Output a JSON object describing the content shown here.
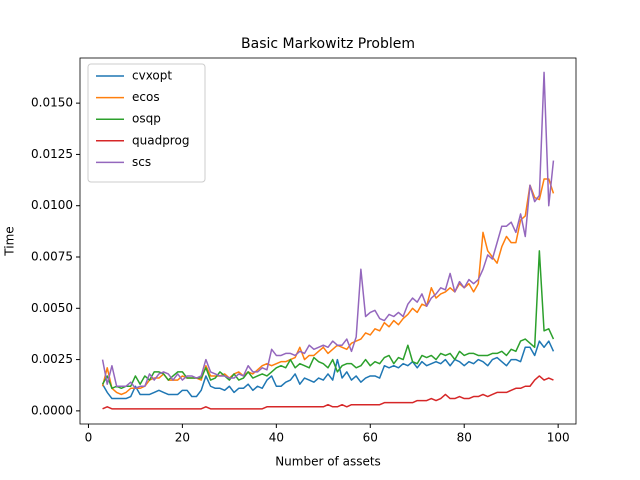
{
  "chart_data": {
    "type": "line",
    "title": "Basic Markowitz Problem",
    "xlabel": "Number of assets",
    "ylabel": "Time",
    "x": [
      3,
      4,
      5,
      6,
      7,
      8,
      9,
      10,
      11,
      12,
      13,
      14,
      15,
      16,
      17,
      18,
      19,
      20,
      21,
      22,
      23,
      24,
      25,
      26,
      27,
      28,
      29,
      30,
      31,
      32,
      33,
      34,
      35,
      36,
      37,
      38,
      39,
      40,
      41,
      42,
      43,
      44,
      45,
      46,
      47,
      48,
      49,
      50,
      51,
      52,
      53,
      54,
      55,
      56,
      57,
      58,
      59,
      60,
      61,
      62,
      63,
      64,
      65,
      66,
      67,
      68,
      69,
      70,
      71,
      72,
      73,
      74,
      75,
      76,
      77,
      78,
      79,
      80,
      81,
      82,
      83,
      84,
      85,
      86,
      87,
      88,
      89,
      90,
      91,
      92,
      93,
      94,
      95,
      96,
      97,
      98,
      99
    ],
    "series": [
      {
        "name": "cvxopt",
        "color": "#1f77b4",
        "values": [
          0.0013,
          0.0009,
          0.0006,
          0.0006,
          0.0006,
          0.0006,
          0.0007,
          0.0012,
          0.0008,
          0.0008,
          0.0008,
          0.0009,
          0.001,
          0.0009,
          0.0008,
          0.0008,
          0.0008,
          0.001,
          0.001,
          0.0007,
          0.0007,
          0.001,
          0.0017,
          0.0012,
          0.0011,
          0.0011,
          0.001,
          0.0012,
          0.0009,
          0.0011,
          0.0011,
          0.0013,
          0.001,
          0.0012,
          0.0011,
          0.0015,
          0.0017,
          0.0012,
          0.0012,
          0.0014,
          0.0015,
          0.0018,
          0.0013,
          0.0016,
          0.0015,
          0.0014,
          0.0016,
          0.0015,
          0.0018,
          0.0015,
          0.0025,
          0.0016,
          0.0019,
          0.0015,
          0.0017,
          0.0014,
          0.0016,
          0.0017,
          0.0017,
          0.0016,
          0.0022,
          0.0021,
          0.0022,
          0.0021,
          0.0023,
          0.0022,
          0.0024,
          0.0021,
          0.0024,
          0.0022,
          0.0023,
          0.0024,
          0.0023,
          0.0025,
          0.0022,
          0.0025,
          0.0024,
          0.0022,
          0.0024,
          0.0023,
          0.0025,
          0.0024,
          0.0022,
          0.0025,
          0.0026,
          0.0024,
          0.0022,
          0.0025,
          0.0025,
          0.0024,
          0.0031,
          0.0031,
          0.0027,
          0.0034,
          0.0031,
          0.0034,
          0.0029
        ]
      },
      {
        "name": "ecos",
        "color": "#ff7f0e",
        "values": [
          0.0012,
          0.0021,
          0.0011,
          0.0009,
          0.0008,
          0.0009,
          0.0011,
          0.0011,
          0.0011,
          0.0012,
          0.0015,
          0.0016,
          0.0016,
          0.0018,
          0.0015,
          0.0015,
          0.0015,
          0.0017,
          0.0016,
          0.0016,
          0.0016,
          0.0015,
          0.0022,
          0.0017,
          0.0017,
          0.0017,
          0.0018,
          0.0016,
          0.0018,
          0.0019,
          0.0017,
          0.0019,
          0.0018,
          0.002,
          0.0022,
          0.0023,
          0.0022,
          0.0023,
          0.0024,
          0.0024,
          0.0025,
          0.0026,
          0.0031,
          0.0025,
          0.0027,
          0.0027,
          0.0029,
          0.0031,
          0.0028,
          0.003,
          0.0032,
          0.0031,
          0.003,
          0.0033,
          0.0034,
          0.0035,
          0.0038,
          0.0037,
          0.004,
          0.0039,
          0.0043,
          0.0041,
          0.0044,
          0.0042,
          0.0045,
          0.0047,
          0.005,
          0.0048,
          0.0052,
          0.0051,
          0.006,
          0.0055,
          0.0057,
          0.0058,
          0.006,
          0.0058,
          0.0062,
          0.006,
          0.0062,
          0.0058,
          0.0062,
          0.0087,
          0.0078,
          0.0075,
          0.0072,
          0.008,
          0.0085,
          0.0082,
          0.0082,
          0.0093,
          0.0095,
          0.011,
          0.0104,
          0.0103,
          0.0113,
          0.0113,
          0.0106
        ]
      },
      {
        "name": "osqp",
        "color": "#2ca02c",
        "values": [
          0.0013,
          0.0017,
          0.0011,
          0.0012,
          0.0011,
          0.0012,
          0.0012,
          0.0017,
          0.0013,
          0.0017,
          0.0015,
          0.0019,
          0.0019,
          0.0018,
          0.0015,
          0.0017,
          0.0019,
          0.0019,
          0.0016,
          0.0016,
          0.0016,
          0.0016,
          0.0021,
          0.0015,
          0.0016,
          0.0019,
          0.0017,
          0.0015,
          0.0018,
          0.0015,
          0.0016,
          0.0019,
          0.0016,
          0.0017,
          0.0018,
          0.0017,
          0.0019,
          0.0021,
          0.0022,
          0.0021,
          0.0025,
          0.0021,
          0.0023,
          0.0022,
          0.0021,
          0.0026,
          0.0024,
          0.0023,
          0.0021,
          0.0025,
          0.0019,
          0.0022,
          0.0023,
          0.0023,
          0.0021,
          0.0022,
          0.0025,
          0.0022,
          0.0024,
          0.0023,
          0.0026,
          0.0027,
          0.0023,
          0.0026,
          0.0025,
          0.0032,
          0.0024,
          0.0023,
          0.0027,
          0.0026,
          0.0027,
          0.0025,
          0.0028,
          0.0027,
          0.0028,
          0.0025,
          0.0029,
          0.0027,
          0.0028,
          0.0028,
          0.0027,
          0.0027,
          0.0027,
          0.0028,
          0.0028,
          0.0029,
          0.0027,
          0.003,
          0.0029,
          0.0034,
          0.0035,
          0.0033,
          0.0031,
          0.0078,
          0.0039,
          0.004,
          0.0035
        ]
      },
      {
        "name": "quadprog",
        "color": "#d62728",
        "values": [
          0.0001,
          0.0002,
          0.0001,
          0.0001,
          0.0001,
          0.0001,
          0.0001,
          0.0001,
          0.0001,
          0.0001,
          0.0001,
          0.0001,
          0.0001,
          0.0001,
          0.0001,
          0.0001,
          0.0001,
          0.0001,
          0.0001,
          0.0001,
          0.0001,
          0.0001,
          0.0002,
          0.0001,
          0.0001,
          0.0001,
          0.0001,
          0.0001,
          0.0001,
          0.0001,
          0.0001,
          0.0001,
          0.0001,
          0.0001,
          0.0001,
          0.0002,
          0.0002,
          0.0002,
          0.0002,
          0.0002,
          0.0002,
          0.0002,
          0.0002,
          0.0002,
          0.0002,
          0.0002,
          0.0002,
          0.0002,
          0.0003,
          0.0002,
          0.0002,
          0.0003,
          0.0002,
          0.0003,
          0.0003,
          0.0003,
          0.0003,
          0.0003,
          0.0003,
          0.0003,
          0.0004,
          0.0004,
          0.0004,
          0.0004,
          0.0004,
          0.0004,
          0.0004,
          0.0005,
          0.0005,
          0.0005,
          0.0006,
          0.0005,
          0.0006,
          0.0008,
          0.0006,
          0.0006,
          0.0007,
          0.0006,
          0.0006,
          0.0007,
          0.0007,
          0.0008,
          0.0007,
          0.0008,
          0.0009,
          0.0009,
          0.0009,
          0.001,
          0.0011,
          0.0011,
          0.0012,
          0.0012,
          0.0015,
          0.0017,
          0.0015,
          0.0016,
          0.0015
        ]
      },
      {
        "name": "scs",
        "color": "#9467bd",
        "values": [
          0.0025,
          0.0013,
          0.0022,
          0.0012,
          0.0012,
          0.0012,
          0.0014,
          0.0011,
          0.0012,
          0.0012,
          0.0018,
          0.0015,
          0.0018,
          0.0019,
          0.0018,
          0.0015,
          0.0018,
          0.0015,
          0.0017,
          0.0017,
          0.0016,
          0.0017,
          0.0025,
          0.0019,
          0.0018,
          0.0017,
          0.0017,
          0.0016,
          0.0016,
          0.0018,
          0.0017,
          0.0022,
          0.0019,
          0.0019,
          0.0021,
          0.002,
          0.003,
          0.0027,
          0.0027,
          0.0028,
          0.0028,
          0.0027,
          0.0029,
          0.0028,
          0.0032,
          0.003,
          0.0031,
          0.0032,
          0.0031,
          0.0034,
          0.0032,
          0.0032,
          0.0035,
          0.0029,
          0.0036,
          0.0069,
          0.0046,
          0.0048,
          0.0049,
          0.0045,
          0.0044,
          0.0047,
          0.0046,
          0.0048,
          0.0046,
          0.0052,
          0.0055,
          0.0053,
          0.0057,
          0.0051,
          0.0055,
          0.0057,
          0.006,
          0.0059,
          0.0067,
          0.0058,
          0.0063,
          0.006,
          0.0064,
          0.0062,
          0.0064,
          0.0069,
          0.0076,
          0.0074,
          0.0082,
          0.009,
          0.009,
          0.0092,
          0.0087,
          0.0096,
          0.0085,
          0.011,
          0.0102,
          0.0105,
          0.0165,
          0.01,
          0.0122
        ]
      }
    ],
    "xlim": [
      -1.8,
      103.8
    ],
    "xticks": [
      0,
      20,
      40,
      60,
      80,
      100
    ],
    "ylim": [
      -0.00064,
      0.0172
    ],
    "yticks": [
      {
        "value": 0,
        "label": "0.0000"
      },
      {
        "value": 0.0025,
        "label": "0.0025"
      },
      {
        "value": 0.005,
        "label": "0.0050"
      },
      {
        "value": 0.0075,
        "label": "0.0075"
      },
      {
        "value": 0.01,
        "label": "0.0100"
      },
      {
        "value": 0.0125,
        "label": "0.0125"
      },
      {
        "value": 0.015,
        "label": "0.0150"
      }
    ],
    "grid": false,
    "legend": "upper left"
  }
}
